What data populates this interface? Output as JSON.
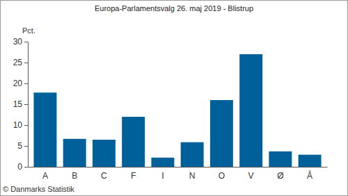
{
  "chart_data": {
    "type": "bar",
    "title": "Europa-Parlamentsvalg 26. maj 2019 - Blistrup",
    "ylabel": "Pct.",
    "source": "© Danmarks Statistik",
    "categories": [
      "A",
      "B",
      "C",
      "F",
      "I",
      "N",
      "O",
      "V",
      "Ø",
      "Å"
    ],
    "values": [
      17.8,
      6.7,
      6.5,
      12.0,
      2.2,
      5.9,
      16.0,
      27.0,
      3.7,
      2.9
    ],
    "color": "#00619a",
    "ylim": [
      0,
      30
    ],
    "yticks": [
      0,
      5,
      10,
      15,
      20,
      25,
      30
    ],
    "grid": false
  }
}
